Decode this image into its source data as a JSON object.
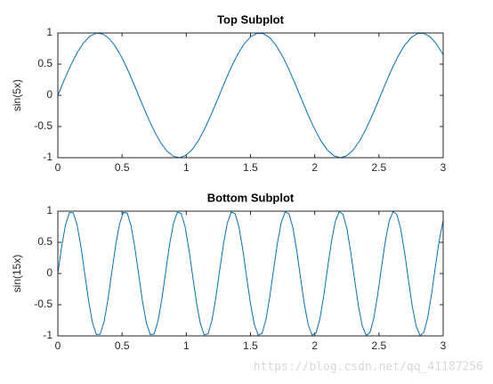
{
  "chart_data": [
    {
      "type": "line",
      "title": "Top Subplot",
      "ylabel": "sin(5x)",
      "color": "#0072bd",
      "x": [
        0,
        0.05,
        0.1,
        0.15,
        0.2,
        0.25,
        0.3,
        0.35,
        0.4,
        0.45,
        0.5,
        0.55,
        0.6,
        0.65,
        0.7,
        0.75,
        0.8,
        0.85,
        0.9,
        0.95,
        1,
        1.05,
        1.1,
        1.15,
        1.2,
        1.25,
        1.3,
        1.35,
        1.4,
        1.45,
        1.5,
        1.55,
        1.6,
        1.65,
        1.7,
        1.75,
        1.8,
        1.85,
        1.9,
        1.95,
        2,
        2.05,
        2.1,
        2.15,
        2.2,
        2.25,
        2.3,
        2.35,
        2.4,
        2.45,
        2.5,
        2.55,
        2.6,
        2.65,
        2.7,
        2.75,
        2.8,
        2.85,
        2.9,
        2.95,
        3
      ],
      "values": [
        0,
        0.247,
        0.479,
        0.682,
        0.841,
        0.949,
        0.997,
        0.984,
        0.909,
        0.778,
        0.598,
        0.382,
        0.141,
        -0.108,
        -0.351,
        -0.572,
        -0.757,
        -0.895,
        -0.978,
        -0.999,
        -0.959,
        -0.859,
        -0.706,
        -0.509,
        -0.279,
        -0.033,
        0.215,
        0.451,
        0.657,
        0.823,
        0.938,
        0.994,
        0.989,
        0.925,
        0.798,
        0.624,
        0.412,
        0.174,
        -0.075,
        -0.32,
        -0.544,
        -0.735,
        -0.88,
        -0.97,
        -1,
        -0.968,
        -0.875,
        -0.729,
        -0.537,
        -0.311,
        -0.066,
        0.183,
        0.42,
        0.632,
        0.804,
        0.926,
        0.991,
        0.994,
        0.935,
        0.818,
        0.65
      ],
      "xlim": [
        0,
        3
      ],
      "xticks": [
        0,
        0.5,
        1,
        1.5,
        2,
        2.5,
        3
      ],
      "ylim": [
        -1,
        1
      ],
      "yticks": [
        -1,
        -0.5,
        0,
        0.5,
        1
      ],
      "grid": false
    },
    {
      "type": "line",
      "title": "Bottom Subplot",
      "ylabel": "sin(15x)",
      "color": "#0072bd",
      "x": [
        0,
        0.03,
        0.06,
        0.09,
        0.12,
        0.15,
        0.18,
        0.21,
        0.24,
        0.27,
        0.3,
        0.33,
        0.36,
        0.39,
        0.42,
        0.45,
        0.48,
        0.51,
        0.54,
        0.57,
        0.6,
        0.63,
        0.66,
        0.69,
        0.72,
        0.75,
        0.78,
        0.81,
        0.84,
        0.87,
        0.9,
        0.93,
        0.96,
        0.99,
        1.02,
        1.05,
        1.08,
        1.11,
        1.14,
        1.17,
        1.2,
        1.23,
        1.26,
        1.29,
        1.32,
        1.35,
        1.38,
        1.41,
        1.44,
        1.47,
        1.5,
        1.53,
        1.56,
        1.59,
        1.62,
        1.65,
        1.68,
        1.71,
        1.74,
        1.77,
        1.8,
        1.83,
        1.86,
        1.89,
        1.92,
        1.95,
        1.98,
        2.01,
        2.04,
        2.07,
        2.1,
        2.13,
        2.16,
        2.19,
        2.22,
        2.25,
        2.28,
        2.31,
        2.34,
        2.37,
        2.4,
        2.43,
        2.46,
        2.49,
        2.52,
        2.55,
        2.58,
        2.61,
        2.64,
        2.67,
        2.7,
        2.73,
        2.76,
        2.79,
        2.82,
        2.85,
        2.88,
        2.91,
        2.94,
        2.97,
        3
      ],
      "values": [
        0,
        0.435,
        0.783,
        0.976,
        0.974,
        0.778,
        0.427,
        -0.008,
        -0.443,
        -0.789,
        -0.978,
        -0.972,
        -0.773,
        -0.42,
        0.017,
        0.45,
        0.794,
        0.979,
        0.97,
        0.767,
        0.412,
        -0.025,
        -0.458,
        -0.798,
        -0.981,
        -0.968,
        -0.762,
        -0.404,
        0.034,
        0.465,
        0.804,
        0.983,
        0.966,
        0.756,
        0.396,
        -0.042,
        -0.473,
        -0.808,
        -0.984,
        -0.964,
        -0.751,
        -0.388,
        0.05,
        0.479,
        0.813,
        0.985,
        0.961,
        0.746,
        0.382,
        -0.058,
        -0.487,
        -0.818,
        -0.987,
        -0.959,
        -0.74,
        -0.374,
        0.067,
        0.494,
        0.823,
        0.988,
        0.956,
        0.734,
        0.366,
        -0.075,
        -0.502,
        -0.827,
        -0.99,
        -0.954,
        -0.729,
        -0.358,
        0.084,
        0.509,
        0.833,
        0.991,
        0.951,
        0.723,
        0.35,
        -0.092,
        -0.517,
        -0.837,
        -0.992,
        -0.949,
        -0.717,
        -0.342,
        0.1,
        0.524,
        0.842,
        0.993,
        0.946,
        0.711,
        0.334,
        -0.109,
        -0.531,
        -0.846,
        -0.994,
        -0.943,
        -0.705,
        -0.326,
        0.118,
        0.538,
        0.85
      ],
      "xlim": [
        0,
        3
      ],
      "xticks": [
        0,
        0.5,
        1,
        1.5,
        2,
        2.5,
        3
      ],
      "ylim": [
        -1,
        1
      ],
      "yticks": [
        -1,
        -0.5,
        0,
        0.5,
        1
      ],
      "grid": false
    }
  ],
  "watermark": "https://blog.csdn.net/qq_41187256"
}
